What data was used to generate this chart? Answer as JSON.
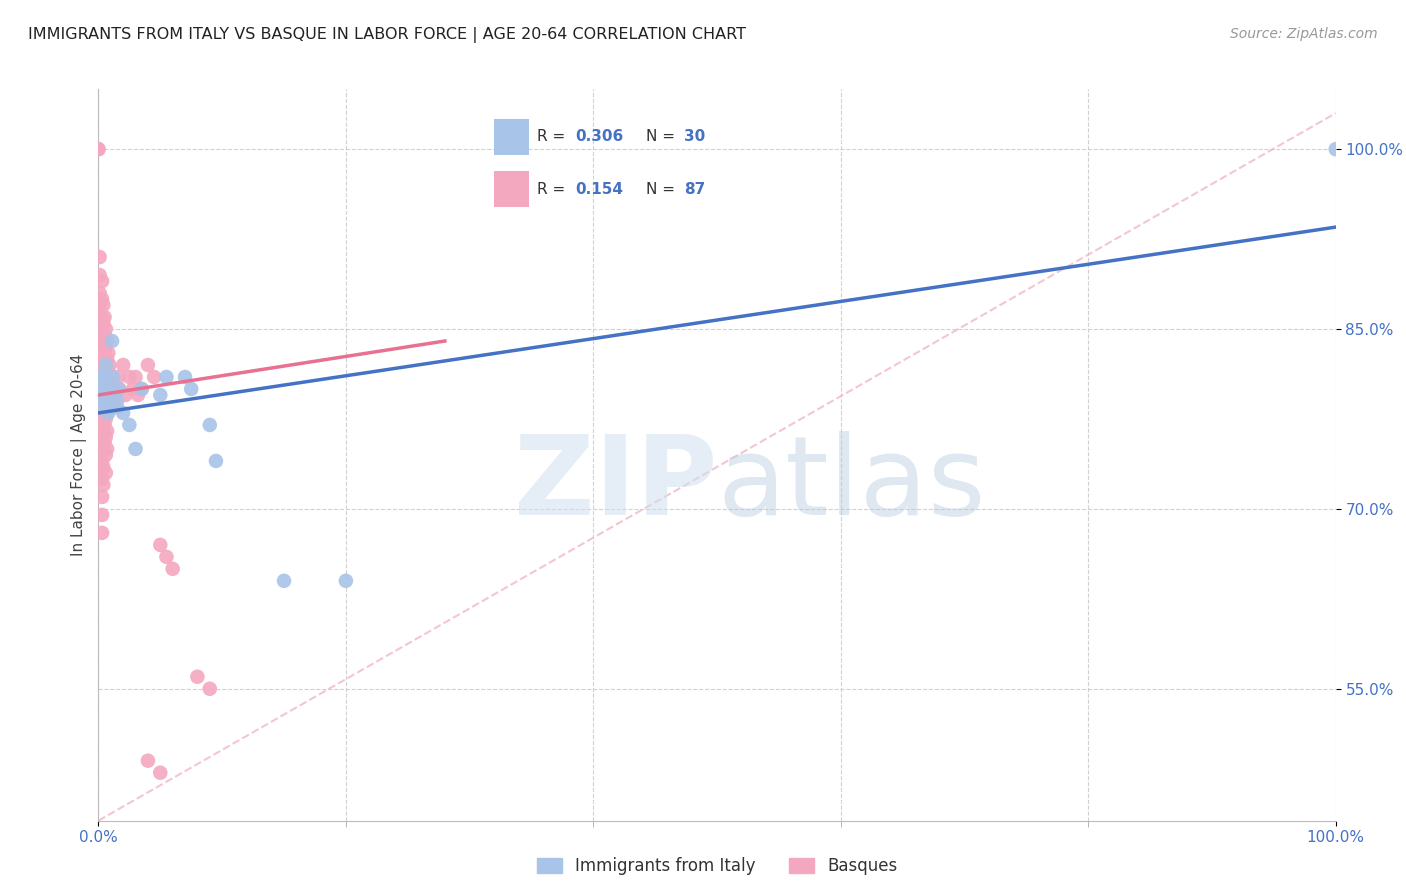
{
  "title": "IMMIGRANTS FROM ITALY VS BASQUE IN LABOR FORCE | AGE 20-64 CORRELATION CHART",
  "source": "Source: ZipAtlas.com",
  "ylabel": "In Labor Force | Age 20-64",
  "xlim": [
    0.0,
    1.0
  ],
  "ylim": [
    0.44,
    1.05
  ],
  "yticks": [
    0.55,
    0.7,
    0.85,
    1.0
  ],
  "ytick_labels": [
    "55.0%",
    "70.0%",
    "85.0%",
    "100.0%"
  ],
  "xticks": [
    0.0,
    1.0
  ],
  "xtick_labels": [
    "0.0%",
    "100.0%"
  ],
  "xtick_minor": [
    0.2,
    0.4,
    0.6,
    0.8
  ],
  "italy_color": "#a8c4e8",
  "basque_color": "#f4a8c0",
  "italy_line_color": "#4472c4",
  "basque_line_color": "#e87090",
  "diagonal_color": "#f0b8c8",
  "background_color": "#ffffff",
  "italy_scatter": [
    [
      0.0,
      0.8
    ],
    [
      0.001,
      0.79
    ],
    [
      0.002,
      0.81
    ],
    [
      0.003,
      0.795
    ],
    [
      0.003,
      0.8
    ],
    [
      0.004,
      0.785
    ],
    [
      0.004,
      0.8
    ],
    [
      0.005,
      0.81
    ],
    [
      0.005,
      0.79
    ],
    [
      0.006,
      0.82
    ],
    [
      0.007,
      0.8
    ],
    [
      0.008,
      0.78
    ],
    [
      0.009,
      0.795
    ],
    [
      0.01,
      0.785
    ],
    [
      0.011,
      0.84
    ],
    [
      0.012,
      0.81
    ],
    [
      0.015,
      0.79
    ],
    [
      0.016,
      0.8
    ],
    [
      0.02,
      0.78
    ],
    [
      0.025,
      0.77
    ],
    [
      0.03,
      0.75
    ],
    [
      0.035,
      0.8
    ],
    [
      0.05,
      0.795
    ],
    [
      0.055,
      0.81
    ],
    [
      0.07,
      0.81
    ],
    [
      0.075,
      0.8
    ],
    [
      0.09,
      0.77
    ],
    [
      0.095,
      0.74
    ],
    [
      0.15,
      0.64
    ],
    [
      0.2,
      0.64
    ],
    [
      1.0,
      1.0
    ]
  ],
  "basque_scatter": [
    [
      0.0,
      1.0
    ],
    [
      0.0,
      1.0
    ],
    [
      0.001,
      0.91
    ],
    [
      0.001,
      0.895
    ],
    [
      0.001,
      0.88
    ],
    [
      0.001,
      0.87
    ],
    [
      0.002,
      0.86
    ],
    [
      0.002,
      0.85
    ],
    [
      0.002,
      0.84
    ],
    [
      0.002,
      0.83
    ],
    [
      0.002,
      0.82
    ],
    [
      0.002,
      0.81
    ],
    [
      0.003,
      0.89
    ],
    [
      0.003,
      0.875
    ],
    [
      0.003,
      0.86
    ],
    [
      0.003,
      0.845
    ],
    [
      0.003,
      0.83
    ],
    [
      0.003,
      0.815
    ],
    [
      0.003,
      0.8
    ],
    [
      0.003,
      0.785
    ],
    [
      0.003,
      0.77
    ],
    [
      0.003,
      0.755
    ],
    [
      0.003,
      0.74
    ],
    [
      0.003,
      0.725
    ],
    [
      0.003,
      0.71
    ],
    [
      0.003,
      0.695
    ],
    [
      0.003,
      0.68
    ],
    [
      0.004,
      0.87
    ],
    [
      0.004,
      0.855
    ],
    [
      0.004,
      0.84
    ],
    [
      0.004,
      0.825
    ],
    [
      0.004,
      0.81
    ],
    [
      0.004,
      0.795
    ],
    [
      0.004,
      0.78
    ],
    [
      0.004,
      0.765
    ],
    [
      0.004,
      0.75
    ],
    [
      0.004,
      0.735
    ],
    [
      0.004,
      0.72
    ],
    [
      0.005,
      0.86
    ],
    [
      0.005,
      0.845
    ],
    [
      0.005,
      0.83
    ],
    [
      0.005,
      0.815
    ],
    [
      0.005,
      0.8
    ],
    [
      0.005,
      0.785
    ],
    [
      0.005,
      0.77
    ],
    [
      0.005,
      0.755
    ],
    [
      0.006,
      0.85
    ],
    [
      0.006,
      0.835
    ],
    [
      0.006,
      0.82
    ],
    [
      0.006,
      0.805
    ],
    [
      0.006,
      0.79
    ],
    [
      0.006,
      0.775
    ],
    [
      0.006,
      0.76
    ],
    [
      0.006,
      0.745
    ],
    [
      0.006,
      0.73
    ],
    [
      0.007,
      0.84
    ],
    [
      0.007,
      0.825
    ],
    [
      0.007,
      0.81
    ],
    [
      0.007,
      0.795
    ],
    [
      0.007,
      0.78
    ],
    [
      0.007,
      0.765
    ],
    [
      0.007,
      0.75
    ],
    [
      0.008,
      0.83
    ],
    [
      0.008,
      0.815
    ],
    [
      0.008,
      0.8
    ],
    [
      0.009,
      0.82
    ],
    [
      0.009,
      0.805
    ],
    [
      0.01,
      0.81
    ],
    [
      0.01,
      0.795
    ],
    [
      0.012,
      0.8
    ],
    [
      0.013,
      0.79
    ],
    [
      0.015,
      0.785
    ],
    [
      0.016,
      0.81
    ],
    [
      0.017,
      0.8
    ],
    [
      0.02,
      0.82
    ],
    [
      0.022,
      0.795
    ],
    [
      0.025,
      0.81
    ],
    [
      0.028,
      0.8
    ],
    [
      0.03,
      0.81
    ],
    [
      0.032,
      0.795
    ],
    [
      0.035,
      0.8
    ],
    [
      0.04,
      0.82
    ],
    [
      0.045,
      0.81
    ],
    [
      0.05,
      0.67
    ],
    [
      0.055,
      0.66
    ],
    [
      0.06,
      0.65
    ],
    [
      0.08,
      0.56
    ],
    [
      0.09,
      0.55
    ],
    [
      0.04,
      0.49
    ],
    [
      0.05,
      0.48
    ]
  ],
  "italy_line": [
    [
      0.0,
      0.78
    ],
    [
      1.0,
      0.935
    ]
  ],
  "basque_line": [
    [
      0.0,
      0.795
    ],
    [
      0.28,
      0.84
    ]
  ],
  "diagonal_line": [
    [
      0.0,
      0.44
    ],
    [
      1.0,
      1.03
    ]
  ]
}
